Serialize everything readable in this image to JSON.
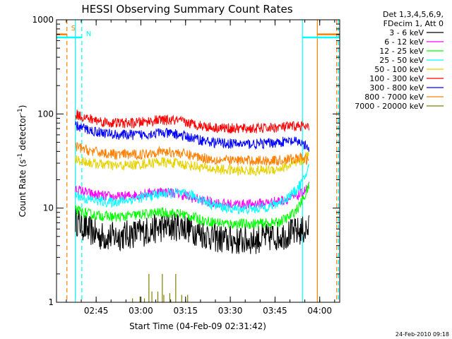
{
  "chart_data": {
    "type": "line",
    "title": "HESSI Observing Summary Count Rates",
    "xlabel": "Start Time (04-Feb-09 02:31:42)",
    "ylabel_main": "Count Rate (s",
    "ylabel_sup1": "-1",
    "ylabel_mid": " detector",
    "ylabel_sup2": "-1",
    "ylabel_end": ")",
    "y_scale": "log",
    "ylim": [
      1,
      1000
    ],
    "xlim_minutes": [
      0,
      95
    ],
    "x_ticks": [
      {
        "label": "02:45",
        "minute": 13.3
      },
      {
        "label": "03:00",
        "minute": 28.3
      },
      {
        "label": "03:15",
        "minute": 43.3
      },
      {
        "label": "03:30",
        "minute": 58.3
      },
      {
        "label": "03:45",
        "minute": 73.3
      },
      {
        "label": "04:00",
        "minute": 88.3
      }
    ],
    "y_ticks": [
      {
        "label": "1",
        "value": 1
      },
      {
        "label": "10",
        "value": 10
      },
      {
        "label": "100",
        "value": 100
      },
      {
        "label": "1000",
        "value": 1000
      }
    ],
    "legend_header": [
      "Det 1,3,4,5,6,9,",
      "FDecim 1, Att 0"
    ],
    "series": [
      {
        "name": "3 - 6 keV",
        "color": "#000000",
        "style": "noisy",
        "start": 6.3,
        "end": 84.7,
        "values": [
          [
            6.3,
            7.5
          ],
          [
            10,
            6
          ],
          [
            15,
            5
          ],
          [
            20,
            5
          ],
          [
            28,
            5.5
          ],
          [
            35,
            6.2
          ],
          [
            42,
            6.5
          ],
          [
            50,
            5.2
          ],
          [
            56,
            4.6
          ],
          [
            63,
            4.5
          ],
          [
            70,
            4.8
          ],
          [
            76,
            5.2
          ],
          [
            80,
            5.5
          ],
          [
            84.7,
            6
          ]
        ]
      },
      {
        "name": "6 - 12 keV",
        "color": "#ff00ff",
        "style": "noisy",
        "start": 6.3,
        "end": 84.7,
        "values": [
          [
            6.3,
            16
          ],
          [
            12,
            14
          ],
          [
            20,
            13
          ],
          [
            28,
            14
          ],
          [
            35,
            15
          ],
          [
            40,
            14.5
          ],
          [
            45,
            13
          ],
          [
            52,
            11.5
          ],
          [
            58,
            11
          ],
          [
            65,
            11
          ],
          [
            72,
            11.5
          ],
          [
            78,
            12.5
          ],
          [
            82,
            14
          ],
          [
            84.7,
            17
          ]
        ]
      },
      {
        "name": "12 - 25 keV",
        "color": "#00ff00",
        "style": "noisy",
        "start": 6.3,
        "end": 84.7,
        "values": [
          [
            6.3,
            9.5
          ],
          [
            12,
            8.5
          ],
          [
            20,
            8
          ],
          [
            28,
            8.5
          ],
          [
            35,
            9
          ],
          [
            42,
            8.7
          ],
          [
            50,
            7.3
          ],
          [
            58,
            6.8
          ],
          [
            66,
            6.8
          ],
          [
            74,
            7
          ],
          [
            78,
            8
          ],
          [
            81,
            10
          ],
          [
            83,
            13
          ],
          [
            84.7,
            17
          ]
        ]
      },
      {
        "name": "25 - 50 keV",
        "color": "#00ffff",
        "style": "noisy",
        "start": 6.3,
        "end": 84.7,
        "values": [
          [
            6.3,
            14
          ],
          [
            10,
            12.5
          ],
          [
            18,
            11.5
          ],
          [
            26,
            12.5
          ],
          [
            34,
            14
          ],
          [
            40,
            14.5
          ],
          [
            46,
            13.5
          ],
          [
            52,
            11
          ],
          [
            58,
            9.8
          ],
          [
            66,
            9.8
          ],
          [
            72,
            10.5
          ],
          [
            76,
            12
          ],
          [
            80,
            15
          ],
          [
            83,
            20
          ],
          [
            84.7,
            28
          ]
        ]
      },
      {
        "name": "50 - 100 keV",
        "color": "#e6d200",
        "style": "noisy",
        "start": 6.3,
        "end": 84.7,
        "values": [
          [
            6.3,
            33
          ],
          [
            12,
            30
          ],
          [
            20,
            28
          ],
          [
            28,
            29
          ],
          [
            34,
            31
          ],
          [
            40,
            30
          ],
          [
            46,
            28
          ],
          [
            52,
            26
          ],
          [
            60,
            25
          ],
          [
            68,
            25
          ],
          [
            74,
            26
          ],
          [
            78,
            28
          ],
          [
            82,
            31
          ],
          [
            84.7,
            38
          ]
        ]
      },
      {
        "name": "100 - 300 keV",
        "color": "#ff0000",
        "style": "noisy",
        "start": 6.3,
        "end": 84.7,
        "values": [
          [
            6.3,
            100
          ],
          [
            10,
            90
          ],
          [
            18,
            80
          ],
          [
            26,
            80
          ],
          [
            34,
            86
          ],
          [
            40,
            85
          ],
          [
            46,
            78
          ],
          [
            52,
            72
          ],
          [
            60,
            70
          ],
          [
            68,
            70
          ],
          [
            74,
            72
          ],
          [
            78,
            73
          ],
          [
            82,
            75
          ],
          [
            84.7,
            70
          ]
        ]
      },
      {
        "name": "300 - 800 keV",
        "color": "#0000ff",
        "style": "noisy",
        "start": 6.3,
        "end": 84.7,
        "values": [
          [
            6.3,
            75
          ],
          [
            12,
            66
          ],
          [
            20,
            60
          ],
          [
            28,
            60
          ],
          [
            34,
            63
          ],
          [
            40,
            61
          ],
          [
            46,
            55
          ],
          [
            52,
            50
          ],
          [
            60,
            48
          ],
          [
            68,
            48
          ],
          [
            74,
            50
          ],
          [
            78,
            51
          ],
          [
            82,
            50
          ],
          [
            84.7,
            42
          ]
        ]
      },
      {
        "name": "800 - 7000 keV",
        "color": "#ff8000",
        "style": "noisy",
        "start": 6.3,
        "end": 84.7,
        "values": [
          [
            6.3,
            45
          ],
          [
            12,
            40
          ],
          [
            20,
            37
          ],
          [
            28,
            37
          ],
          [
            34,
            40
          ],
          [
            40,
            39
          ],
          [
            46,
            36
          ],
          [
            52,
            33
          ],
          [
            60,
            32
          ],
          [
            68,
            32
          ],
          [
            74,
            32
          ],
          [
            78,
            33
          ],
          [
            82,
            34
          ],
          [
            84.7,
            32
          ]
        ]
      },
      {
        "name": "7000 - 20000 keV",
        "color": "#808000",
        "style": "spikes",
        "start": 25,
        "end": 45,
        "values": [
          [
            25.5,
            1.1
          ],
          [
            28,
            1.15
          ],
          [
            29.5,
            1.1
          ],
          [
            31,
            2
          ],
          [
            32,
            1.3
          ],
          [
            34,
            1.3
          ],
          [
            35.5,
            2
          ],
          [
            36,
            1.2
          ],
          [
            38,
            1.25
          ],
          [
            40,
            2
          ],
          [
            42,
            1.2
          ],
          [
            44,
            1.2
          ]
        ]
      }
    ],
    "markers": [
      {
        "label": "S",
        "color": "#ff8000",
        "style": "dashed",
        "minute": 3.5
      },
      {
        "label": "N",
        "color": "#00ffff",
        "style": "dashed",
        "minute": 8.5
      },
      {
        "label": "",
        "color": "#00ffff",
        "style": "solid",
        "minute": 6.3
      },
      {
        "label": "",
        "color": "#00ffff",
        "style": "solid",
        "minute": 82.5
      },
      {
        "label": "",
        "color": "#ff8000",
        "style": "solid",
        "minute": 87.5
      },
      {
        "label": "",
        "color": "#ff8000",
        "style": "dashed",
        "minute": 94.0
      },
      {
        "label": "",
        "color": "#00ffff",
        "style": "dashed",
        "minute": 94.6
      }
    ],
    "segments": [
      {
        "color": "#ff8000",
        "y": 700,
        "from": 0,
        "to": 3.5
      },
      {
        "color": "#00ffff",
        "y": 650,
        "from": 0,
        "to": 8.5
      },
      {
        "color": "#00ffff",
        "y": 650,
        "from": 82.5,
        "to": 95
      },
      {
        "color": "#ff8000",
        "y": 700,
        "from": 87.5,
        "to": 95
      }
    ],
    "grid": false
  },
  "stamp": "24-Feb-2010 09:18"
}
